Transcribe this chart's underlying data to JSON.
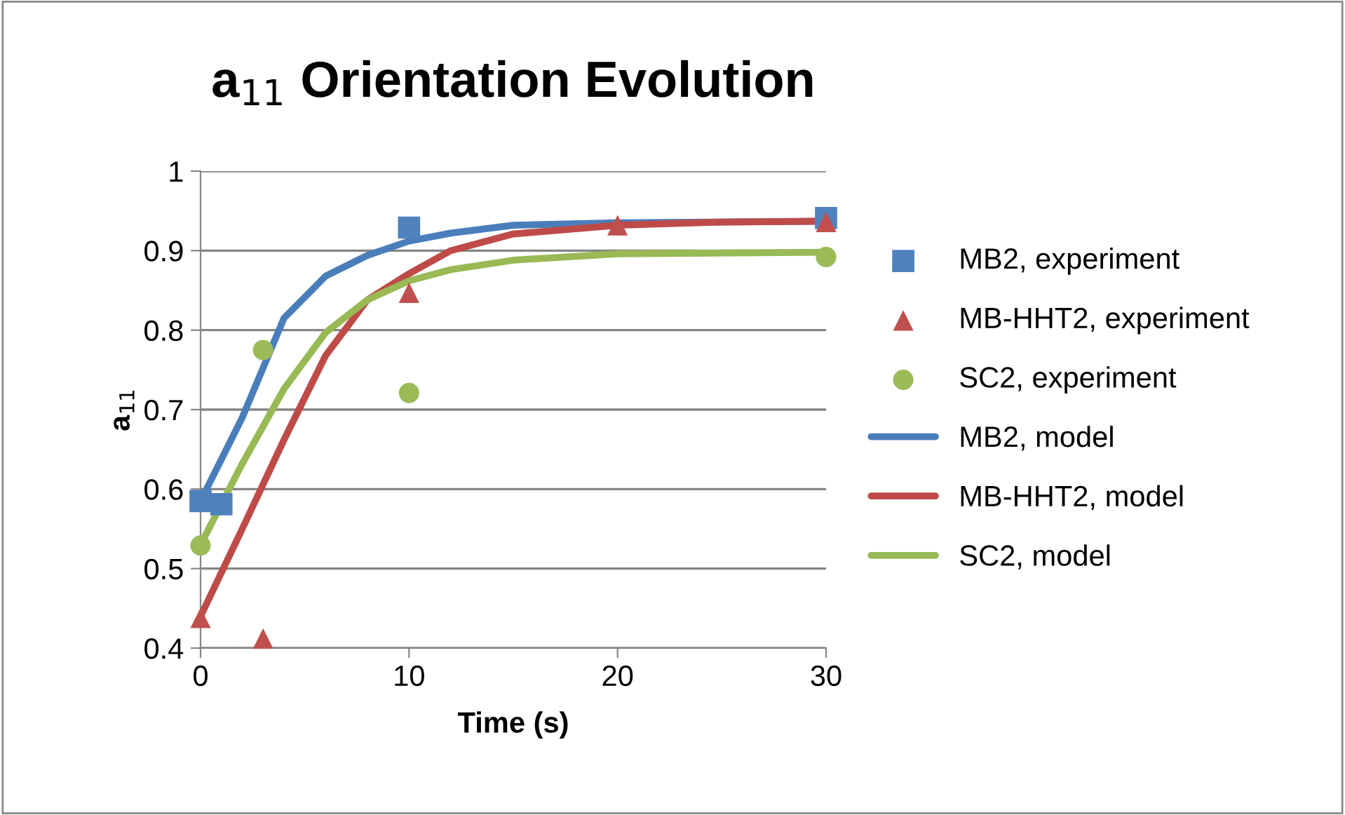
{
  "chart_data": {
    "type": "scatter",
    "title": "a$_{11}$ Orientation Evolution",
    "xlabel": "Time (s)",
    "ylabel": "a$_{11}$",
    "xlim": [
      0,
      30
    ],
    "xticks": [
      0,
      10,
      20,
      30
    ],
    "ylim": [
      0.4,
      1
    ],
    "yticks": [
      0.4,
      0.5,
      0.6,
      0.7,
      0.8,
      0.9,
      1
    ],
    "grid": "y",
    "legend": "right",
    "series": [
      {
        "name": "MB2, experiment",
        "marker": "square",
        "color": "#4f81bd",
        "x": [
          0,
          1,
          10,
          30
        ],
        "values": [
          0.585,
          0.581,
          0.929,
          0.941
        ]
      },
      {
        "name": "MB-HHT2, experiment",
        "marker": "triangle",
        "color": "#c0504d",
        "x": [
          0,
          3,
          10,
          20,
          30
        ],
        "values": [
          0.438,
          0.412,
          0.847,
          0.932,
          0.936
        ]
      },
      {
        "name": "SC2, experiment",
        "marker": "circle",
        "color": "#9bbb59",
        "x": [
          0,
          3,
          10,
          30
        ],
        "values": [
          0.529,
          0.775,
          0.721,
          0.892
        ]
      },
      {
        "name": "MB2, model",
        "type": "line",
        "marker": "none",
        "color": "#4a7ebb",
        "x": [
          0,
          2,
          4,
          6,
          8,
          10,
          12,
          15,
          20,
          30
        ],
        "values": [
          0.585,
          0.69,
          0.815,
          0.868,
          0.894,
          0.912,
          0.922,
          0.932,
          0.935,
          0.937
        ]
      },
      {
        "name": "MB-HHT2, model",
        "type": "line",
        "marker": "none",
        "color": "#be4b48",
        "x": [
          0,
          2,
          4,
          6,
          8,
          10,
          12,
          15,
          20,
          25,
          30
        ],
        "values": [
          0.44,
          0.55,
          0.662,
          0.768,
          0.838,
          0.871,
          0.9,
          0.921,
          0.932,
          0.936,
          0.937
        ]
      },
      {
        "name": "SC2, model",
        "type": "line",
        "marker": "none",
        "color": "#98b954",
        "x": [
          0,
          2,
          4,
          6,
          8,
          10,
          12,
          15,
          20,
          30
        ],
        "values": [
          0.53,
          0.632,
          0.726,
          0.797,
          0.838,
          0.862,
          0.876,
          0.888,
          0.896,
          0.898
        ]
      }
    ]
  }
}
